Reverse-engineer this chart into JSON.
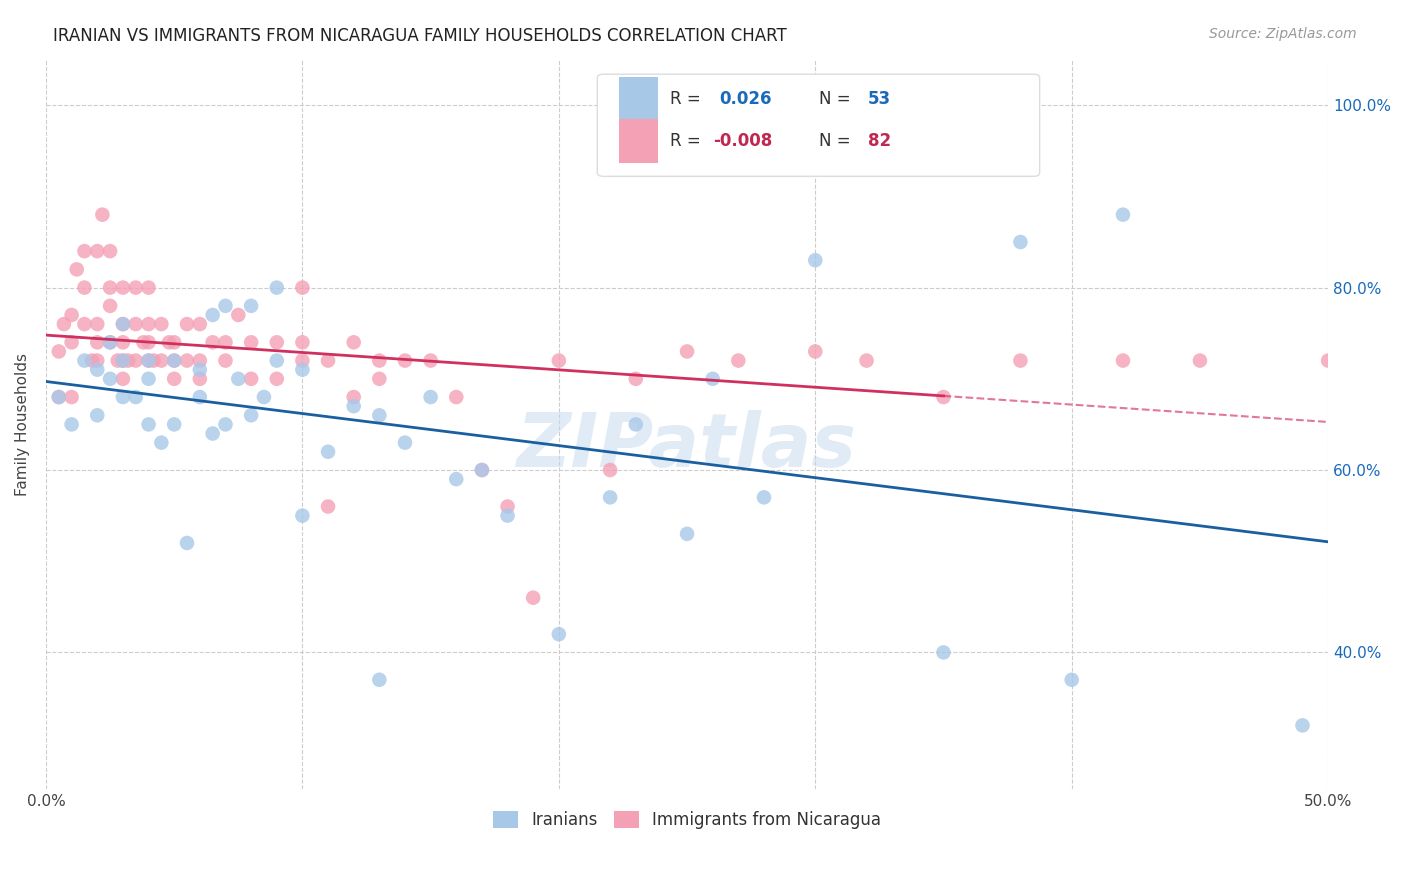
{
  "title": "IRANIAN VS IMMIGRANTS FROM NICARAGUA FAMILY HOUSEHOLDS CORRELATION CHART",
  "source": "Source: ZipAtlas.com",
  "ylabel": "Family Households",
  "watermark": "ZIPatlas",
  "legend1_label": "Iranians",
  "legend2_label": "Immigrants from Nicaragua",
  "r1": 0.026,
  "n1": 53,
  "r2": -0.008,
  "n2": 82,
  "xlim": [
    0.0,
    0.5
  ],
  "ylim": [
    0.25,
    1.05
  ],
  "yticks": [
    0.4,
    0.6,
    0.8,
    1.0
  ],
  "ytick_labels": [
    "40.0%",
    "60.0%",
    "80.0%",
    "100.0%"
  ],
  "color_blue": "#a8c8e8",
  "color_pink": "#f4a0b5",
  "color_blue_line": "#1a5fa0",
  "color_pink_line": "#d03060",
  "color_blue_text": "#1a6aba",
  "color_pink_text": "#c02850",
  "iranians_x": [
    0.005,
    0.01,
    0.015,
    0.02,
    0.02,
    0.025,
    0.025,
    0.03,
    0.03,
    0.03,
    0.035,
    0.04,
    0.04,
    0.04,
    0.045,
    0.05,
    0.05,
    0.055,
    0.06,
    0.06,
    0.065,
    0.065,
    0.07,
    0.07,
    0.075,
    0.08,
    0.08,
    0.085,
    0.09,
    0.09,
    0.1,
    0.1,
    0.11,
    0.12,
    0.13,
    0.13,
    0.14,
    0.15,
    0.16,
    0.17,
    0.18,
    0.2,
    0.22,
    0.23,
    0.25,
    0.26,
    0.28,
    0.3,
    0.35,
    0.38,
    0.4,
    0.42,
    0.49
  ],
  "iranians_y": [
    0.68,
    0.65,
    0.72,
    0.66,
    0.71,
    0.7,
    0.74,
    0.72,
    0.68,
    0.76,
    0.68,
    0.7,
    0.72,
    0.65,
    0.63,
    0.65,
    0.72,
    0.52,
    0.68,
    0.71,
    0.64,
    0.77,
    0.65,
    0.78,
    0.7,
    0.66,
    0.78,
    0.68,
    0.72,
    0.8,
    0.55,
    0.71,
    0.62,
    0.67,
    0.37,
    0.66,
    0.63,
    0.68,
    0.59,
    0.6,
    0.55,
    0.42,
    0.57,
    0.65,
    0.53,
    0.7,
    0.57,
    0.83,
    0.4,
    0.85,
    0.37,
    0.88,
    0.32
  ],
  "nicaragua_x": [
    0.005,
    0.005,
    0.007,
    0.01,
    0.01,
    0.01,
    0.012,
    0.015,
    0.015,
    0.015,
    0.018,
    0.02,
    0.02,
    0.02,
    0.02,
    0.022,
    0.025,
    0.025,
    0.025,
    0.025,
    0.028,
    0.03,
    0.03,
    0.03,
    0.03,
    0.03,
    0.032,
    0.035,
    0.035,
    0.035,
    0.038,
    0.04,
    0.04,
    0.04,
    0.04,
    0.042,
    0.045,
    0.045,
    0.048,
    0.05,
    0.05,
    0.05,
    0.055,
    0.055,
    0.06,
    0.06,
    0.06,
    0.065,
    0.07,
    0.07,
    0.075,
    0.08,
    0.08,
    0.09,
    0.09,
    0.1,
    0.1,
    0.1,
    0.11,
    0.11,
    0.12,
    0.12,
    0.13,
    0.13,
    0.14,
    0.15,
    0.16,
    0.17,
    0.18,
    0.19,
    0.2,
    0.22,
    0.23,
    0.25,
    0.27,
    0.3,
    0.32,
    0.35,
    0.38,
    0.42,
    0.45,
    0.5
  ],
  "nicaragua_y": [
    0.73,
    0.68,
    0.76,
    0.77,
    0.74,
    0.68,
    0.82,
    0.84,
    0.8,
    0.76,
    0.72,
    0.76,
    0.72,
    0.74,
    0.84,
    0.88,
    0.74,
    0.78,
    0.8,
    0.84,
    0.72,
    0.7,
    0.72,
    0.74,
    0.76,
    0.8,
    0.72,
    0.72,
    0.76,
    0.8,
    0.74,
    0.72,
    0.74,
    0.76,
    0.8,
    0.72,
    0.72,
    0.76,
    0.74,
    0.7,
    0.72,
    0.74,
    0.76,
    0.72,
    0.7,
    0.72,
    0.76,
    0.74,
    0.72,
    0.74,
    0.77,
    0.7,
    0.74,
    0.7,
    0.74,
    0.72,
    0.74,
    0.8,
    0.72,
    0.56,
    0.68,
    0.74,
    0.7,
    0.72,
    0.72,
    0.72,
    0.68,
    0.6,
    0.56,
    0.46,
    0.72,
    0.6,
    0.7,
    0.73,
    0.72,
    0.73,
    0.72,
    0.68,
    0.72,
    0.72,
    0.72,
    0.72
  ]
}
